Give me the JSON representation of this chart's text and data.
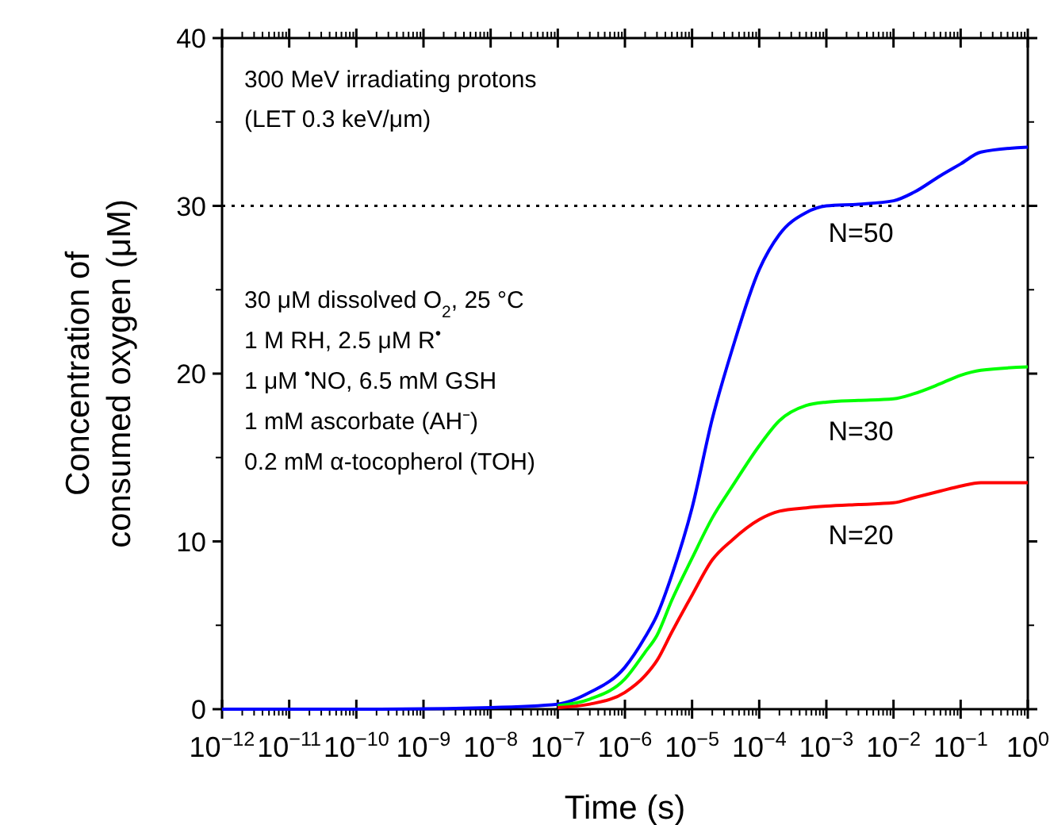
{
  "chart_data": {
    "type": "line",
    "xlabel": "Time (s)",
    "ylabel": "Concentration of consumed oxygen (μM)",
    "log": "x",
    "x": [
      1e-12,
      1e-10,
      1e-08,
      1e-07,
      3e-07,
      1e-06,
      2e-06,
      3e-06,
      5e-06,
      1e-05,
      2e-05,
      4e-05,
      0.0001,
      0.0002,
      0.0005,
      0.001,
      0.003,
      0.01,
      0.02,
      0.05,
      0.1,
      0.2,
      1
    ],
    "series": [
      {
        "name": "N=50",
        "color": "#0000ff",
        "values": [
          0,
          0,
          0.1,
          0.3,
          1.0,
          2.5,
          4.3,
          5.6,
          8.0,
          12.0,
          17.3,
          21.5,
          26.2,
          28.3,
          29.6,
          30.0,
          30.1,
          30.3,
          30.8,
          31.8,
          32.5,
          33.2,
          33.5
        ]
      },
      {
        "name": "N=30",
        "color": "#00ff00",
        "values": [
          null,
          null,
          null,
          0.2,
          0.6,
          1.8,
          3.4,
          4.4,
          6.5,
          9.0,
          11.4,
          13.3,
          15.7,
          17.2,
          18.1,
          18.3,
          18.4,
          18.5,
          18.8,
          19.4,
          19.9,
          20.2,
          20.4
        ]
      },
      {
        "name": "N=20",
        "color": "#ff0000",
        "values": [
          null,
          null,
          null,
          0.1,
          0.3,
          1.0,
          2.0,
          2.9,
          4.6,
          6.8,
          8.9,
          10.1,
          11.3,
          11.8,
          12.0,
          12.1,
          12.2,
          12.3,
          12.6,
          13.0,
          13.3,
          13.5,
          13.5
        ]
      }
    ],
    "xlim": [
      1e-12,
      1
    ],
    "xticks": [
      {
        "value": 1e-12,
        "label": "10$^{−12}$"
      },
      {
        "value": 1e-11,
        "label": "10$^{−11}$"
      },
      {
        "value": 1e-10,
        "label": "10$^{−10}$"
      },
      {
        "value": 1e-09,
        "label": "10$^{−9}$"
      },
      {
        "value": 1e-08,
        "label": "10$^{−8}$"
      },
      {
        "value": 1e-07,
        "label": "10$^{−7}$"
      },
      {
        "value": 1e-06,
        "label": "10$^{−6}$"
      },
      {
        "value": 1e-05,
        "label": "10$^{−5}$"
      },
      {
        "value": 0.0001,
        "label": "10$^{−4}$"
      },
      {
        "value": 0.001,
        "label": "10$^{−3}$"
      },
      {
        "value": 0.01,
        "label": "10$^{−2}$"
      },
      {
        "value": 0.1,
        "label": "10$^{−1}$"
      },
      {
        "value": 1,
        "label": "10$^{0}$"
      }
    ],
    "ylim": [
      0,
      40
    ],
    "yticks": [
      0,
      10,
      20,
      30,
      40
    ],
    "ref_lines": [
      {
        "axis": "y",
        "value": 30,
        "color": "#000000",
        "line_style": "dotted"
      }
    ],
    "annotations": [
      "300 MeV irradiating protons",
      "(LET 0.3 keV/μm)",
      "30 μM dissolved O$_{2}$, 25 °C",
      "1 M RH, 2.5 μM R$^{•}$",
      "1 μM $^{•}$NO, 6.5 mM GSH",
      "1 mM ascorbate (AH⁻)",
      "0.2 mM α-tocopherol (TOH)"
    ],
    "grid": false,
    "line_style": "solid"
  }
}
